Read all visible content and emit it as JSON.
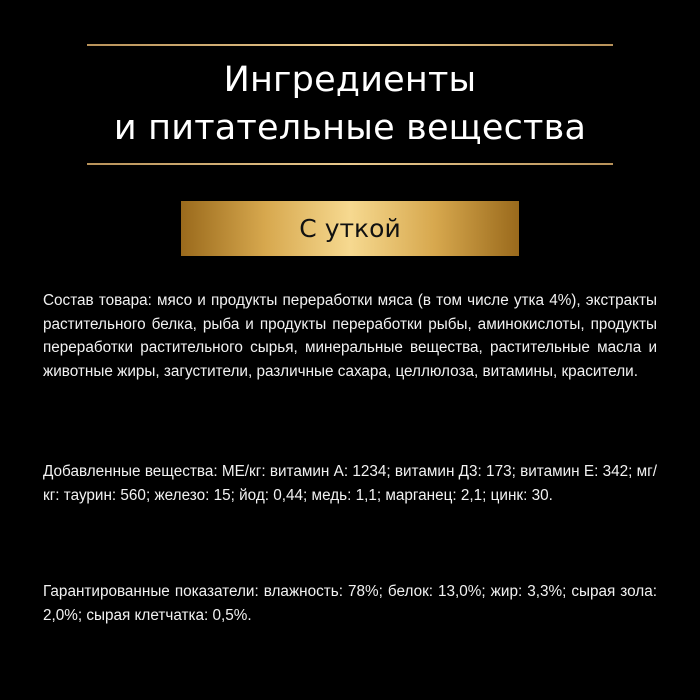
{
  "header": {
    "title_line1": "Ингредиенты",
    "title_line2": "и питательные вещества"
  },
  "variant_badge": "С уткой",
  "composition": "Состав товара: мясо и продукты переработки мяса (в том числе утка 4%), экстракты растительного белка, рыба и продукты переработки рыбы, аминокислоты, продукты переработки растительного сырья, минеральные вещества, растительные масла и животные жиры, загустители, различные сахара, целлюлоза, витамины, красители.",
  "additives": "Добавленные вещества: МЕ/кг: витамин А: 1234; витамин Д3: 173; витамин Е: 342; мг/кг: таурин: 560; железо: 15; йод: 0,44; медь: 1,1; марганец: 2,1; цинк: 30.",
  "guaranteed": "Гарантированные показатели: влажность: 78%; белок: 13,0%; жир: 3,3%; сырая зола: 2,0%; сырая клетчатка: 0,5%.",
  "colors": {
    "background": "#000000",
    "gold": "#d7a84e",
    "text": "#ffffff"
  }
}
